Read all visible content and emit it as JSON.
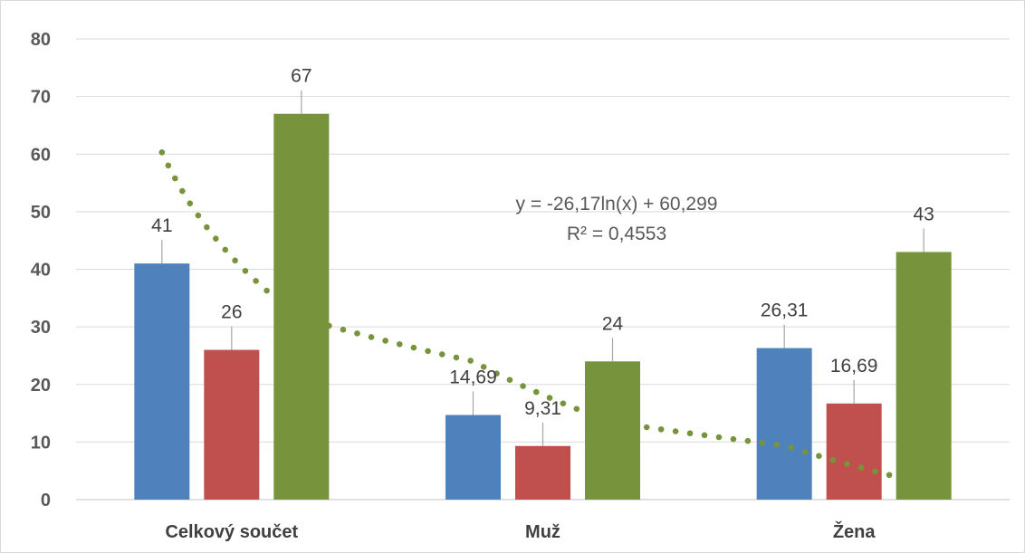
{
  "chart_data": {
    "type": "bar",
    "categories": [
      "Celkový součet",
      "Muž",
      "Žena"
    ],
    "series": [
      {
        "values": [
          41,
          14.69,
          26.31
        ],
        "labels": [
          "41",
          "14,69",
          "26,31"
        ],
        "color": "#4f81bd"
      },
      {
        "values": [
          26,
          9.31,
          16.69
        ],
        "labels": [
          "26",
          "9,31",
          "16,69"
        ],
        "color": "#c0504d"
      },
      {
        "values": [
          67,
          24,
          43
        ],
        "labels": [
          "67",
          "24",
          "43"
        ],
        "color": "#77933c"
      }
    ],
    "ylim": [
      0,
      80
    ],
    "yticks": [
      0,
      10,
      20,
      30,
      40,
      50,
      60,
      70,
      80
    ],
    "grid": true,
    "trendline": {
      "type": "logarithmic",
      "a": -26.17,
      "b": 60.299,
      "color": "#77933c",
      "equation": "y = -26,17ln(x) + 60,299",
      "r2": "R² = 0,4553"
    }
  }
}
